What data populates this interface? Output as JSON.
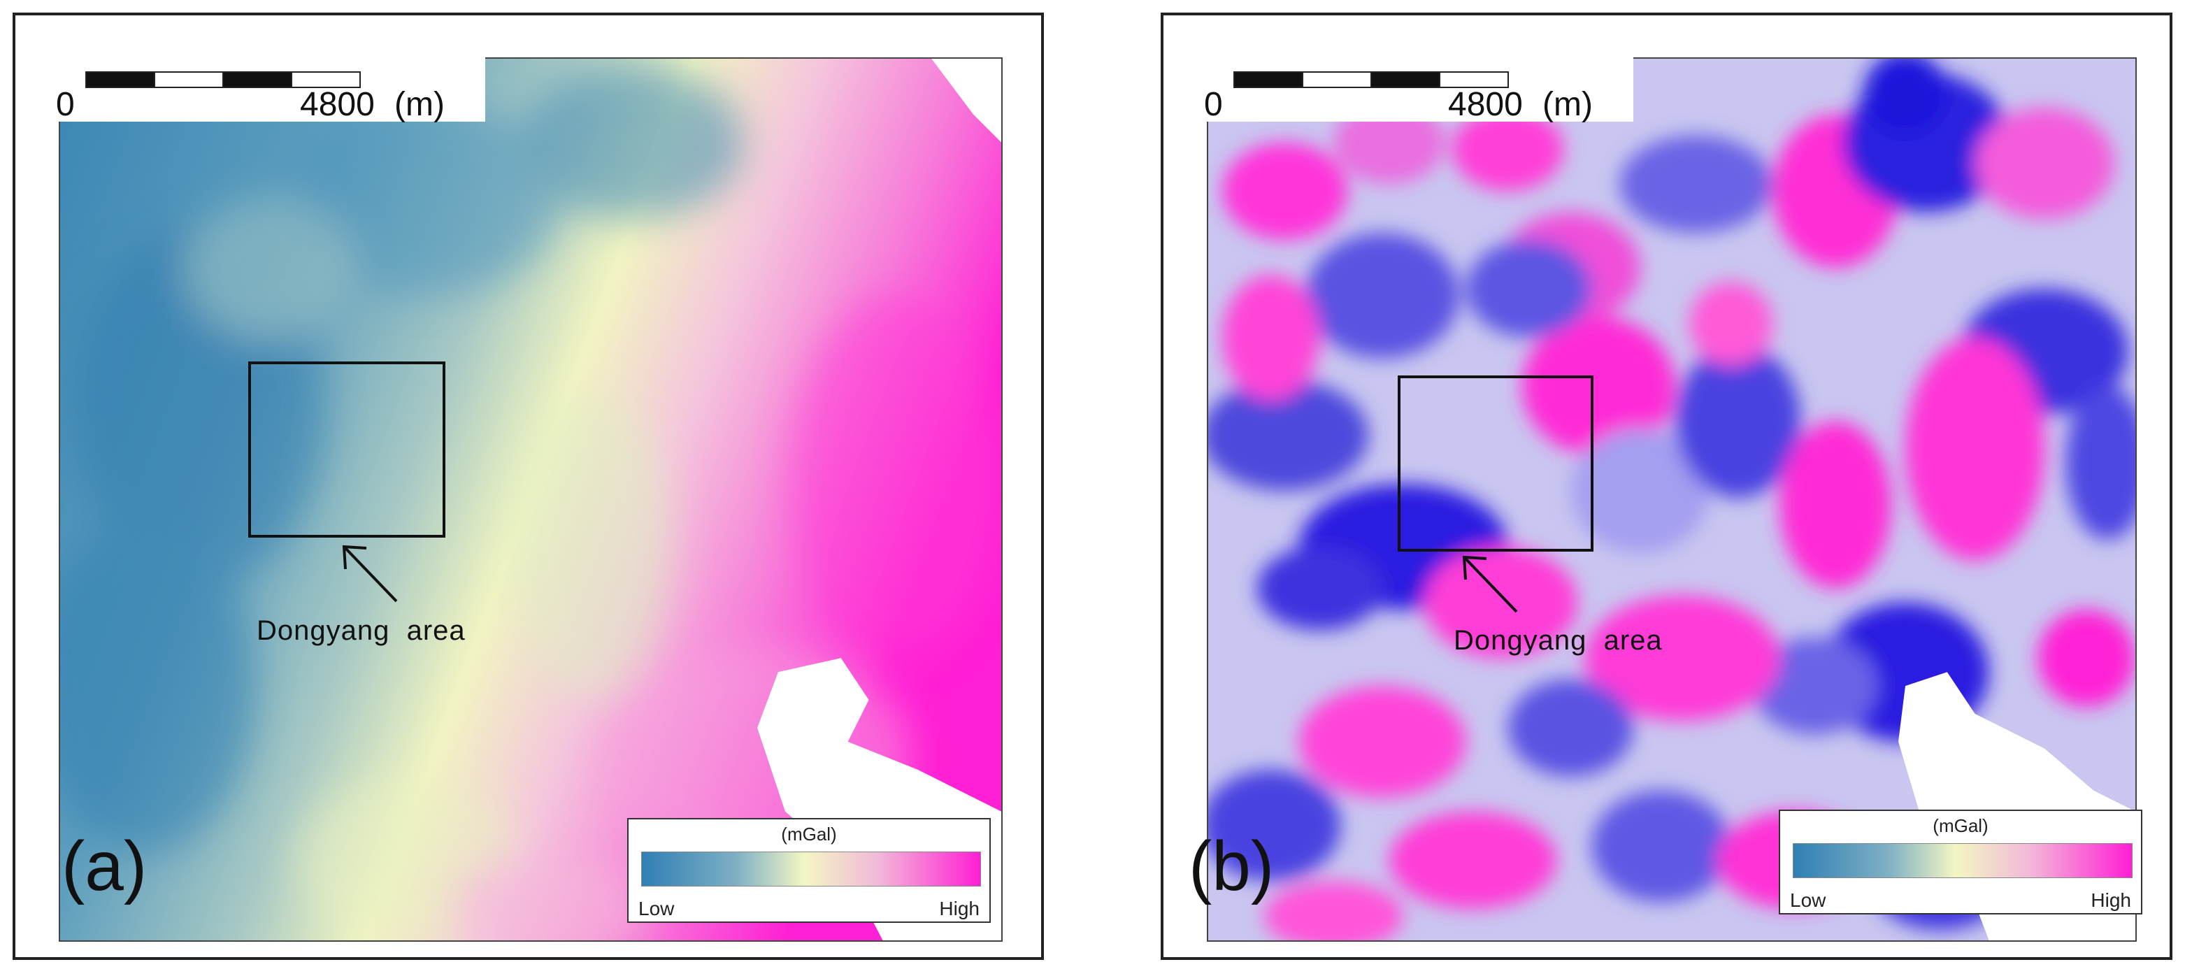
{
  "panels": [
    {
      "label": "(a)",
      "scale": {
        "start": "0",
        "end": "4800",
        "unit": "(m)"
      },
      "annotation": "Dongyang  area",
      "legend": {
        "unit": "(mGal)",
        "low": "Low",
        "high": "High"
      }
    },
    {
      "label": "(b)",
      "scale": {
        "start": "0",
        "end": "4800",
        "unit": "(m)"
      },
      "annotation": "Dongyang  area",
      "legend": {
        "unit": "(mGal)",
        "low": "Low",
        "high": "High"
      }
    }
  ],
  "colors": {
    "low": "#2f7fb4",
    "mid": "#f3f6c4",
    "high": "#ff1fd4",
    "residual_low": "#2a1fe0",
    "residual_mid": "#c9c6f0",
    "residual_high": "#ff2bd6"
  }
}
